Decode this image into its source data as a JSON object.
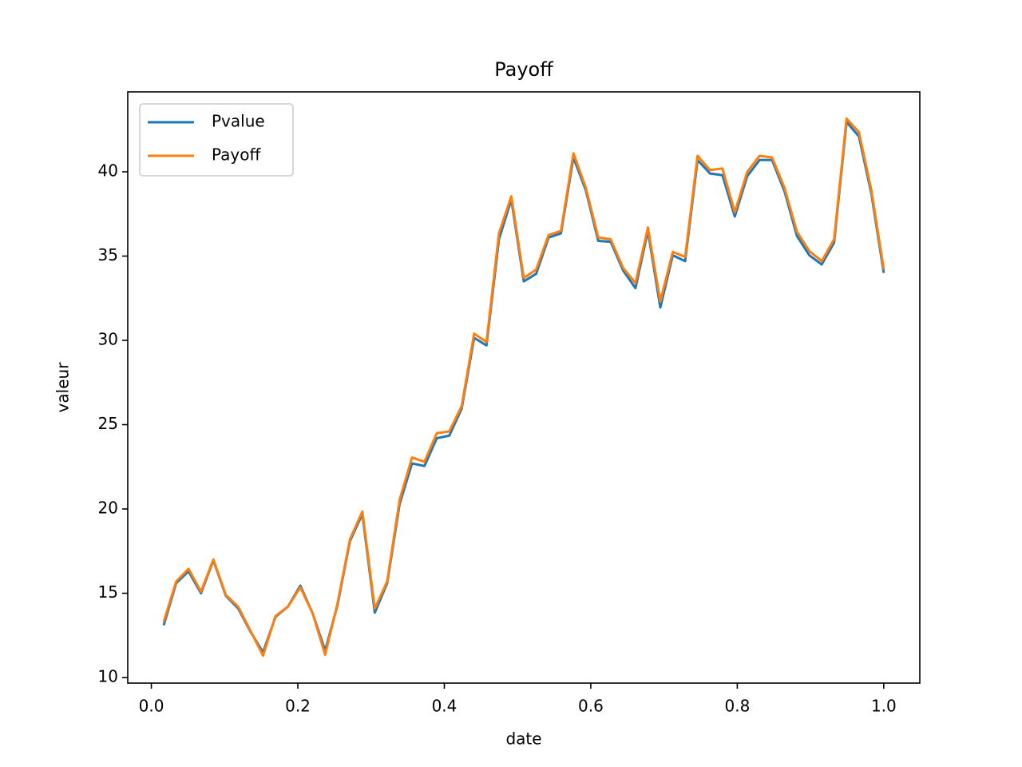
{
  "chart_data": {
    "type": "line",
    "title": "Payoff",
    "x_label": "date",
    "y_label": "valeur",
    "x": [
      0.0169,
      0.0339,
      0.0508,
      0.0678,
      0.0847,
      0.1017,
      0.1186,
      0.1356,
      0.1525,
      0.1695,
      0.1864,
      0.2034,
      0.2203,
      0.2373,
      0.2542,
      0.2712,
      0.2881,
      0.3051,
      0.322,
      0.339,
      0.3559,
      0.3729,
      0.3898,
      0.4068,
      0.4237,
      0.4407,
      0.4576,
      0.4746,
      0.4915,
      0.5085,
      0.5254,
      0.5424,
      0.5593,
      0.5763,
      0.5932,
      0.6102,
      0.6271,
      0.6441,
      0.661,
      0.678,
      0.6949,
      0.7119,
      0.7288,
      0.7458,
      0.7627,
      0.7797,
      0.7966,
      0.8136,
      0.8305,
      0.8475,
      0.8644,
      0.8814,
      0.8983,
      0.9153,
      0.9322,
      0.9492,
      0.9661,
      0.9831,
      1.0
    ],
    "series": [
      {
        "name": "Pvalue",
        "color": "#1f77b4",
        "values": [
          13.1,
          15.6,
          16.3,
          15.0,
          16.95,
          14.85,
          14.1,
          12.7,
          11.5,
          13.6,
          14.2,
          15.45,
          13.8,
          11.6,
          14.3,
          18.1,
          19.7,
          13.85,
          15.6,
          20.3,
          22.7,
          22.55,
          24.2,
          24.35,
          25.95,
          30.15,
          29.7,
          36.0,
          38.35,
          33.5,
          33.95,
          36.1,
          36.35,
          40.85,
          38.9,
          35.9,
          35.85,
          34.15,
          33.1,
          36.5,
          31.95,
          35.05,
          34.7,
          40.7,
          39.9,
          39.8,
          37.35,
          39.75,
          40.7,
          40.7,
          38.85,
          36.2,
          35.05,
          34.5,
          35.8,
          42.95,
          42.1,
          38.7,
          34.0
        ]
      },
      {
        "name": "Payoff",
        "color": "#ff7f0e",
        "values": [
          13.3,
          15.7,
          16.45,
          15.1,
          17.0,
          14.9,
          14.2,
          12.75,
          11.3,
          13.65,
          14.2,
          15.35,
          13.8,
          11.35,
          14.4,
          18.2,
          19.85,
          14.1,
          15.7,
          20.55,
          23.05,
          22.8,
          24.5,
          24.6,
          26.1,
          30.4,
          29.9,
          36.35,
          38.55,
          33.7,
          34.2,
          36.25,
          36.5,
          41.1,
          39.05,
          36.1,
          36.0,
          34.3,
          33.4,
          36.7,
          32.3,
          35.25,
          34.95,
          40.95,
          40.1,
          40.2,
          37.6,
          40.0,
          40.95,
          40.85,
          39.05,
          36.45,
          35.3,
          34.7,
          36.0,
          43.15,
          42.35,
          38.9,
          34.2
        ]
      }
    ],
    "xlim": [
      -0.0322,
      1.0492
    ],
    "ylim": [
      9.67,
      44.74
    ],
    "xticks": [
      {
        "value": 0,
        "label": "0.0"
      },
      {
        "value": 0.2,
        "label": "0.2"
      },
      {
        "value": 0.4,
        "label": "0.4"
      },
      {
        "value": 0.6,
        "label": "0.6"
      },
      {
        "value": 0.8,
        "label": "0.8"
      },
      {
        "value": 1,
        "label": "1.0"
      }
    ],
    "yticks": [
      10,
      15,
      20,
      25,
      30,
      35,
      40
    ],
    "legend": "upper left",
    "grid": false
  }
}
